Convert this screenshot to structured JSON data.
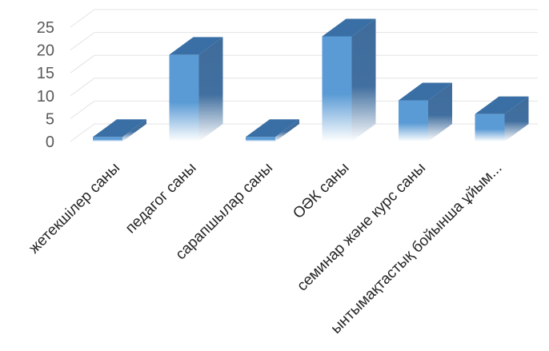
{
  "chart_data": {
    "type": "bar",
    "categories": [
      "жетекшілер саны",
      "педагог саны",
      "сарапшылар саны",
      "ОӘК саны",
      "семинар және курс саны",
      "ынтымақтастық бойынша ұйым..."
    ],
    "values": [
      1,
      19,
      1,
      23,
      9,
      6
    ],
    "y_ticks": [
      "0",
      "5",
      "10",
      "15",
      "20",
      "25"
    ],
    "ylim": [
      0,
      25
    ],
    "grid": true,
    "legend": "none",
    "title": "",
    "xlabel": "",
    "ylabel": "",
    "colors": {
      "front": "#5b9bd5",
      "side": "#3f6c9b",
      "top": "#3a6fa5",
      "grid": "#e3e3e3"
    }
  }
}
